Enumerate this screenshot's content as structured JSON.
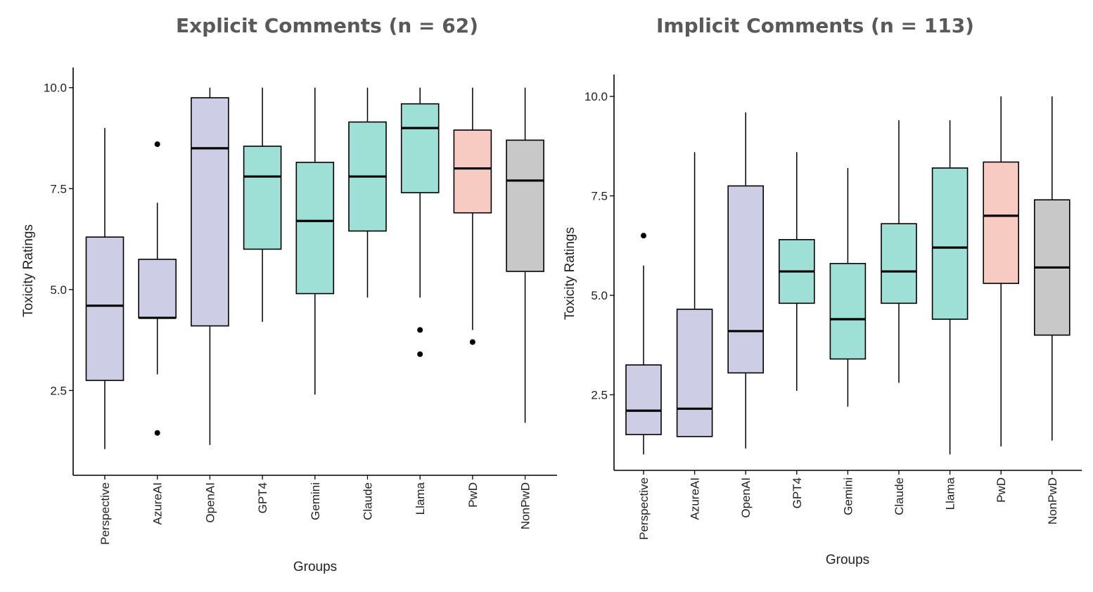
{
  "chart_data": [
    {
      "type": "boxplot",
      "title": "Explicit Comments (n = 62)",
      "xlabel": "Groups",
      "ylabel": "Toxicity Ratings",
      "ylim": [
        0.4,
        10.5
      ],
      "yticks": [
        2.5,
        5.0,
        7.5,
        10.0
      ],
      "ytick_labels": [
        "2.5",
        "5.0",
        "7.5",
        "10.0"
      ],
      "categories": [
        "Perspective",
        "AzureAI",
        "OpenAI",
        "GPT4",
        "Gemini",
        "Claude",
        "Llama",
        "PwD",
        "NonPwD"
      ],
      "boxes": [
        {
          "group": "Perspective",
          "color_key": "api",
          "whisker_low": 1.05,
          "q1": 2.75,
          "median": 4.6,
          "q3": 6.3,
          "whisker_high": 9.0,
          "outliers": []
        },
        {
          "group": "AzureAI",
          "color_key": "api",
          "whisker_low": 2.9,
          "q1": 4.3,
          "median": 4.3,
          "q3": 5.75,
          "whisker_high": 7.15,
          "outliers": [
            8.6,
            1.45
          ]
        },
        {
          "group": "OpenAI",
          "color_key": "api",
          "whisker_low": 1.15,
          "q1": 4.1,
          "median": 8.5,
          "q3": 9.75,
          "whisker_high": 10.0,
          "outliers": []
        },
        {
          "group": "GPT4",
          "color_key": "llm",
          "whisker_low": 4.2,
          "q1": 6.0,
          "median": 7.8,
          "q3": 8.55,
          "whisker_high": 10.0,
          "outliers": []
        },
        {
          "group": "Gemini",
          "color_key": "llm",
          "whisker_low": 2.4,
          "q1": 4.9,
          "median": 6.7,
          "q3": 8.15,
          "whisker_high": 10.0,
          "outliers": []
        },
        {
          "group": "Claude",
          "color_key": "llm",
          "whisker_low": 4.8,
          "q1": 6.45,
          "median": 7.8,
          "q3": 9.15,
          "whisker_high": 10.0,
          "outliers": []
        },
        {
          "group": "Llama",
          "color_key": "llm",
          "whisker_low": 4.8,
          "q1": 7.4,
          "median": 9.0,
          "q3": 9.6,
          "whisker_high": 10.0,
          "outliers": [
            4.0,
            3.4
          ]
        },
        {
          "group": "PwD",
          "color_key": "pwd",
          "whisker_low": 4.0,
          "q1": 6.9,
          "median": 8.0,
          "q3": 8.95,
          "whisker_high": 10.0,
          "outliers": [
            3.7
          ]
        },
        {
          "group": "NonPwD",
          "color_key": "nonpwd",
          "whisker_low": 1.7,
          "q1": 5.45,
          "median": 7.7,
          "q3": 8.7,
          "whisker_high": 10.0,
          "outliers": []
        }
      ]
    },
    {
      "type": "boxplot",
      "title": "Implicit Comments (n = 113)",
      "xlabel": "Groups",
      "ylabel": "Toxicity Ratings",
      "ylim": [
        0.6,
        10.55
      ],
      "yticks": [
        2.5,
        5.0,
        7.5,
        10.0
      ],
      "ytick_labels": [
        "2.5",
        "5.0",
        "7.5",
        "10.0"
      ],
      "categories": [
        "Perspective",
        "AzureAI",
        "OpenAI",
        "GPT4",
        "Gemini",
        "Claude",
        "Llama",
        "PwD",
        "NonPwD"
      ],
      "boxes": [
        {
          "group": "Perspective",
          "color_key": "api",
          "whisker_low": 1.0,
          "q1": 1.5,
          "median": 2.1,
          "q3": 3.25,
          "whisker_high": 5.75,
          "outliers": [
            6.5
          ]
        },
        {
          "group": "AzureAI",
          "color_key": "api",
          "whisker_low": 1.45,
          "q1": 1.45,
          "median": 2.15,
          "q3": 4.65,
          "whisker_high": 8.6,
          "outliers": []
        },
        {
          "group": "OpenAI",
          "color_key": "api",
          "whisker_low": 1.15,
          "q1": 3.05,
          "median": 4.1,
          "q3": 7.75,
          "whisker_high": 9.6,
          "outliers": []
        },
        {
          "group": "GPT4",
          "color_key": "llm",
          "whisker_low": 2.6,
          "q1": 4.8,
          "median": 5.6,
          "q3": 6.4,
          "whisker_high": 8.6,
          "outliers": []
        },
        {
          "group": "Gemini",
          "color_key": "llm",
          "whisker_low": 2.2,
          "q1": 3.4,
          "median": 4.4,
          "q3": 5.8,
          "whisker_high": 8.2,
          "outliers": []
        },
        {
          "group": "Claude",
          "color_key": "llm",
          "whisker_low": 2.8,
          "q1": 4.8,
          "median": 5.6,
          "q3": 6.8,
          "whisker_high": 9.4,
          "outliers": []
        },
        {
          "group": "Llama",
          "color_key": "llm",
          "whisker_low": 1.0,
          "q1": 4.4,
          "median": 6.2,
          "q3": 8.2,
          "whisker_high": 9.4,
          "outliers": []
        },
        {
          "group": "PwD",
          "color_key": "pwd",
          "whisker_low": 1.2,
          "q1": 5.3,
          "median": 7.0,
          "q3": 8.35,
          "whisker_high": 10.0,
          "outliers": []
        },
        {
          "group": "NonPwD",
          "color_key": "nonpwd",
          "whisker_low": 1.35,
          "q1": 4.0,
          "median": 5.7,
          "q3": 7.4,
          "whisker_high": 10.0,
          "outliers": []
        }
      ]
    }
  ],
  "colors": {
    "api": "#cecde6",
    "llm": "#9edfd6",
    "pwd": "#f8cbc2",
    "nonpwd": "#c8c8c8"
  }
}
